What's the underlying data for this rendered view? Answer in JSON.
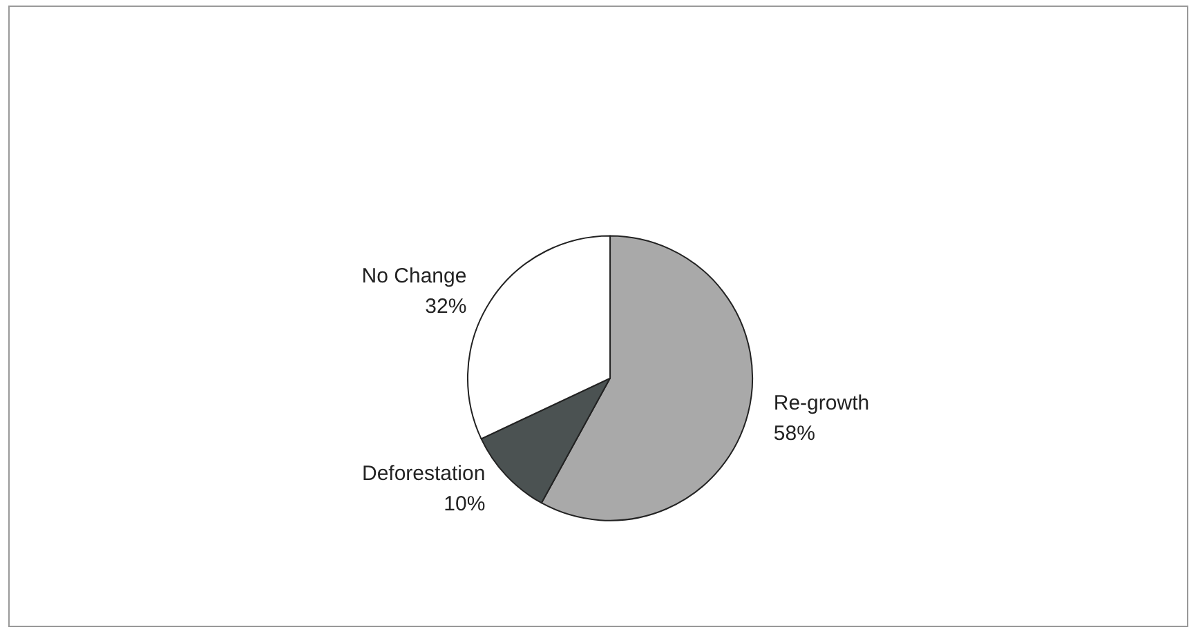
{
  "chart_data": {
    "type": "pie",
    "categories": [
      "Re-growth",
      "Deforestation",
      "No Change"
    ],
    "values": [
      58,
      10,
      32
    ],
    "colors": [
      "#a9a9a9",
      "#4b5252",
      "#ffffff"
    ],
    "value_labels": [
      "58%",
      "10%",
      "32%"
    ],
    "legend": false
  }
}
